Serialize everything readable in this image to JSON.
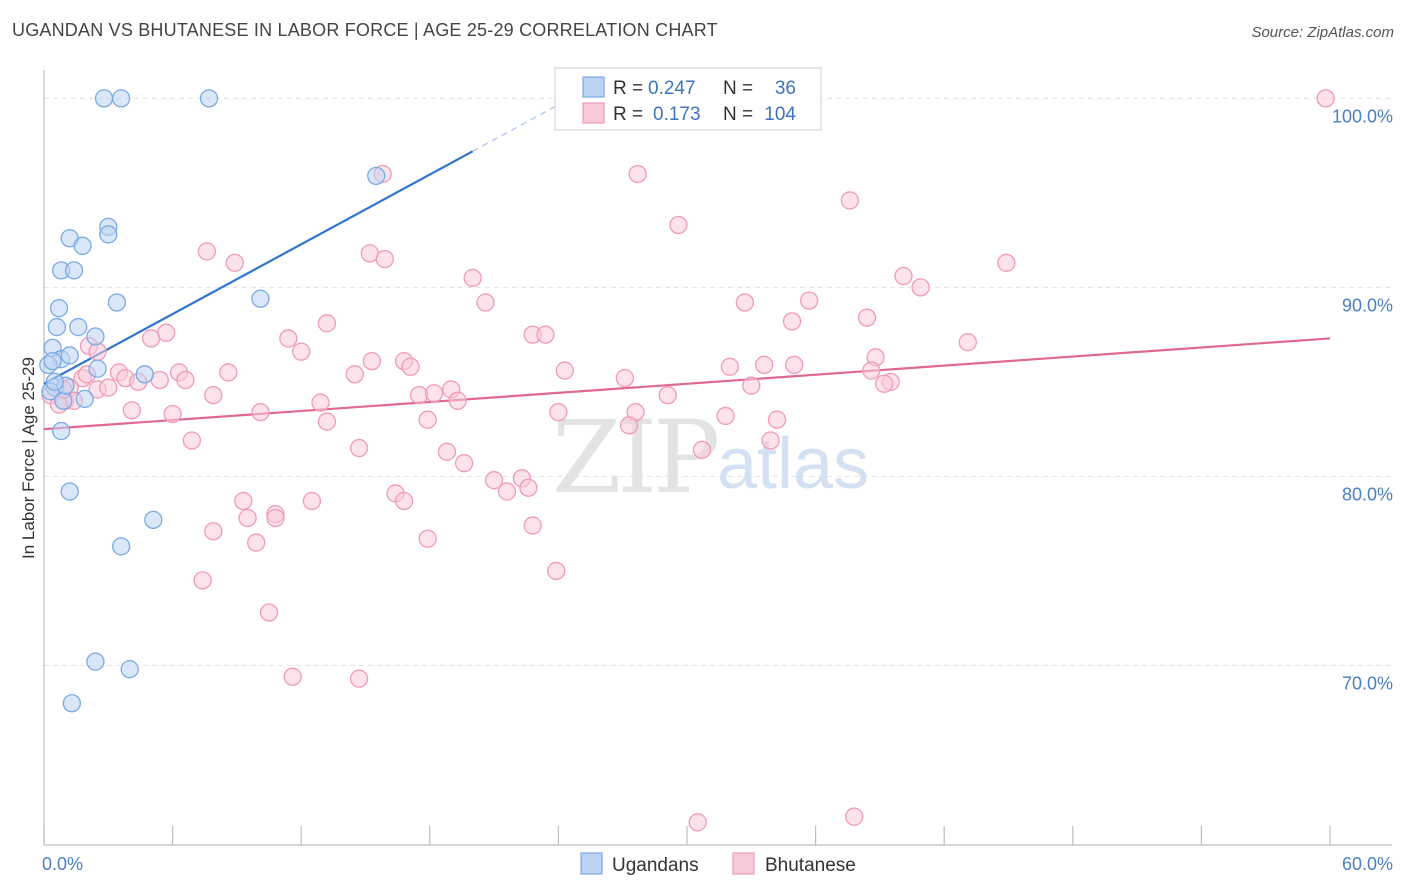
{
  "header": {
    "title": "UGANDAN VS BHUTANESE IN LABOR FORCE | AGE 25-29 CORRELATION CHART",
    "source": "Source: ZipAtlas.com"
  },
  "watermark": {
    "zip": "ZIP",
    "atlas": "atlas"
  },
  "chart_data": {
    "type": "scatter",
    "title": "UGANDAN VS BHUTANESE IN LABOR FORCE | AGE 25-29 CORRELATION CHART",
    "xlabel": "",
    "ylabel": "In Labor Force | Age 25-29",
    "xlim": [
      0,
      60
    ],
    "ylim": [
      60.5,
      101.5
    ],
    "x_tick_labels": {
      "min": "0.0%",
      "max": "60.0%"
    },
    "y_ticks": [
      {
        "value": 100,
        "label": "100.0%"
      },
      {
        "value": 90,
        "label": "90.0%"
      },
      {
        "value": 80,
        "label": "80.0%"
      },
      {
        "value": 70,
        "label": "70.0%"
      }
    ],
    "grid": true,
    "legend_position": "top-center",
    "stats_legend": [
      {
        "r_label": "R =",
        "r_value": "0.247",
        "n_label": "N =",
        "n_value": "36"
      },
      {
        "r_label": "R =",
        "r_value": "0.173",
        "n_label": "N =",
        "n_value": "104"
      }
    ],
    "series": [
      {
        "name": "Ugandans",
        "color": "#7aaae6",
        "fill": "#bcd4f2",
        "line_color": "#2f74d0",
        "trend": {
          "x0": 0,
          "y0": 84.9,
          "x1": 20,
          "y1": 97.2,
          "dash_to_x": 24.5
        },
        "points": [
          [
            2.8,
            100
          ],
          [
            3.6,
            100
          ],
          [
            7.7,
            100
          ],
          [
            15.5,
            95.9
          ],
          [
            3.0,
            93.2
          ],
          [
            1.2,
            92.6
          ],
          [
            1.8,
            92.2
          ],
          [
            3.0,
            92.8
          ],
          [
            0.8,
            90.9
          ],
          [
            1.4,
            90.9
          ],
          [
            3.4,
            89.2
          ],
          [
            10.1,
            89.4
          ],
          [
            0.7,
            88.9
          ],
          [
            0.6,
            87.9
          ],
          [
            1.6,
            87.9
          ],
          [
            2.4,
            87.4
          ],
          [
            0.4,
            86.8
          ],
          [
            0.8,
            86.2
          ],
          [
            1.2,
            86.4
          ],
          [
            0.2,
            85.9
          ],
          [
            0.4,
            86.1
          ],
          [
            2.5,
            85.7
          ],
          [
            4.7,
            85.4
          ],
          [
            0.5,
            84.7
          ],
          [
            0.3,
            84.5
          ],
          [
            0.9,
            84.0
          ],
          [
            1.9,
            84.1
          ],
          [
            0.8,
            82.4
          ],
          [
            1.2,
            79.2
          ],
          [
            5.1,
            77.7
          ],
          [
            3.6,
            76.3
          ],
          [
            2.4,
            70.2
          ],
          [
            4.0,
            69.8
          ],
          [
            1.3,
            68.0
          ],
          [
            1.0,
            84.8
          ],
          [
            0.5,
            85.0
          ]
        ]
      },
      {
        "name": "Bhutanese",
        "color": "#f09ab8",
        "fill": "#f9cadb",
        "line_color": "#e06892",
        "trend": {
          "x0": 0,
          "y0": 82.5,
          "x1": 60,
          "y1": 87.3
        },
        "points": [
          [
            59.8,
            100
          ],
          [
            15.8,
            96.0
          ],
          [
            27.7,
            96.0
          ],
          [
            37.6,
            94.6
          ],
          [
            29.6,
            93.3
          ],
          [
            7.6,
            91.9
          ],
          [
            8.9,
            91.3
          ],
          [
            15.2,
            91.8
          ],
          [
            15.9,
            91.5
          ],
          [
            20.0,
            90.5
          ],
          [
            40.1,
            90.6
          ],
          [
            40.9,
            90.0
          ],
          [
            44.9,
            91.3
          ],
          [
            20.6,
            89.2
          ],
          [
            32.7,
            89.2
          ],
          [
            35.7,
            89.3
          ],
          [
            38.4,
            88.4
          ],
          [
            13.2,
            88.1
          ],
          [
            34.9,
            88.2
          ],
          [
            5.7,
            87.6
          ],
          [
            5.0,
            87.3
          ],
          [
            11.4,
            87.3
          ],
          [
            22.8,
            87.5
          ],
          [
            23.4,
            87.5
          ],
          [
            43.1,
            87.1
          ],
          [
            2.1,
            86.9
          ],
          [
            2.5,
            86.6
          ],
          [
            12.0,
            86.6
          ],
          [
            15.3,
            86.1
          ],
          [
            16.8,
            86.1
          ],
          [
            17.1,
            85.8
          ],
          [
            32.0,
            85.8
          ],
          [
            33.6,
            85.9
          ],
          [
            35.0,
            85.9
          ],
          [
            38.8,
            86.3
          ],
          [
            38.6,
            85.6
          ],
          [
            3.5,
            85.5
          ],
          [
            6.3,
            85.5
          ],
          [
            8.6,
            85.5
          ],
          [
            14.5,
            85.4
          ],
          [
            24.3,
            85.6
          ],
          [
            1.8,
            85.2
          ],
          [
            3.8,
            85.2
          ],
          [
            4.4,
            85.0
          ],
          [
            5.4,
            85.1
          ],
          [
            6.6,
            85.1
          ],
          [
            27.1,
            85.2
          ],
          [
            39.5,
            85.0
          ],
          [
            39.2,
            84.9
          ],
          [
            1.2,
            84.7
          ],
          [
            2.5,
            84.6
          ],
          [
            19.0,
            84.6
          ],
          [
            17.5,
            84.3
          ],
          [
            18.2,
            84.4
          ],
          [
            29.1,
            84.3
          ],
          [
            33.0,
            84.8
          ],
          [
            1.0,
            84.0
          ],
          [
            7.9,
            84.3
          ],
          [
            12.9,
            83.9
          ],
          [
            19.3,
            84.0
          ],
          [
            24.0,
            83.4
          ],
          [
            27.6,
            83.4
          ],
          [
            4.1,
            83.5
          ],
          [
            6.0,
            83.3
          ],
          [
            10.1,
            83.4
          ],
          [
            17.9,
            83.0
          ],
          [
            31.8,
            83.2
          ],
          [
            34.2,
            83.0
          ],
          [
            13.2,
            82.9
          ],
          [
            27.3,
            82.7
          ],
          [
            6.9,
            81.9
          ],
          [
            14.7,
            81.5
          ],
          [
            18.8,
            81.3
          ],
          [
            30.7,
            81.4
          ],
          [
            33.9,
            81.9
          ],
          [
            19.6,
            80.7
          ],
          [
            21.0,
            79.8
          ],
          [
            21.6,
            79.2
          ],
          [
            22.3,
            79.9
          ],
          [
            22.6,
            79.4
          ],
          [
            16.4,
            79.1
          ],
          [
            12.5,
            78.7
          ],
          [
            16.8,
            78.7
          ],
          [
            9.3,
            78.7
          ],
          [
            10.8,
            78.0
          ],
          [
            10.8,
            77.8
          ],
          [
            9.5,
            77.8
          ],
          [
            7.9,
            77.1
          ],
          [
            22.8,
            77.4
          ],
          [
            17.9,
            76.7
          ],
          [
            9.9,
            76.5
          ],
          [
            23.9,
            75.0
          ],
          [
            7.4,
            74.5
          ],
          [
            10.5,
            72.8
          ],
          [
            11.6,
            69.4
          ],
          [
            14.7,
            69.3
          ],
          [
            30.5,
            61.7
          ],
          [
            37.8,
            62.0
          ],
          [
            0.3,
            84.3
          ],
          [
            0.7,
            83.8
          ],
          [
            1.4,
            84.0
          ],
          [
            0.9,
            84.6
          ],
          [
            2.0,
            85.4
          ],
          [
            3.0,
            84.7
          ]
        ]
      }
    ]
  }
}
